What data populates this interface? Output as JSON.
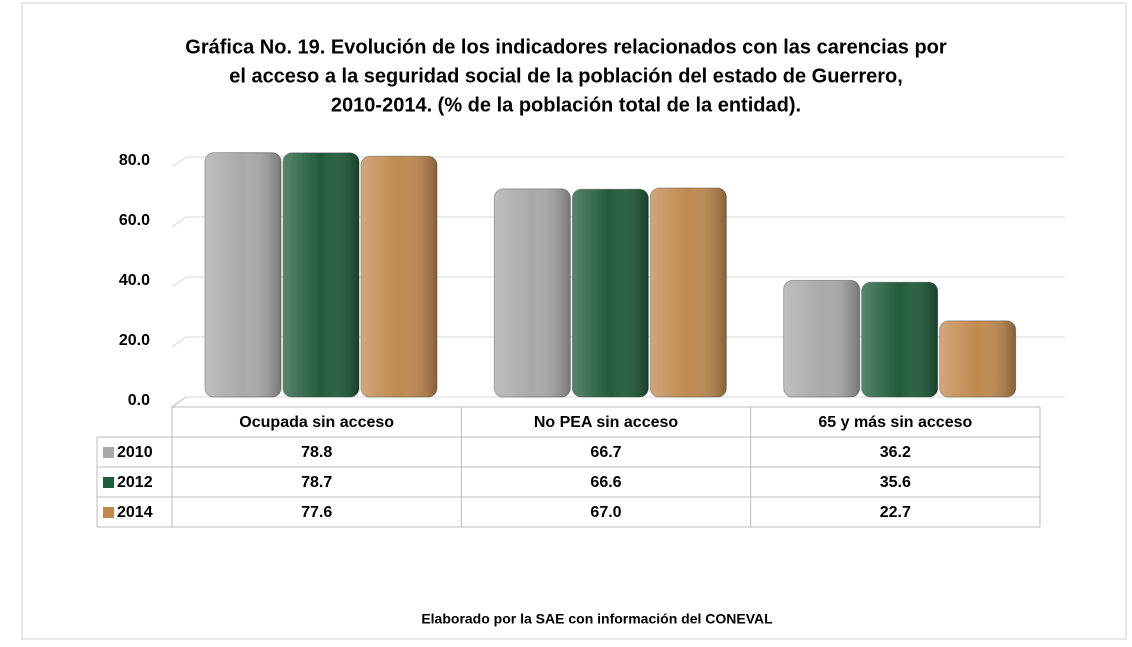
{
  "chart_data": {
    "type": "bar",
    "title": [
      "Gráfica No. 19. Evolución de los indicadores relacionados con las carencias por",
      "el acceso a la seguridad social de la población del estado de Guerrero,",
      "2010-2014. (% de la población total de la entidad)."
    ],
    "categories": [
      "Ocupada sin acceso",
      "No PEA sin acceso",
      "65 y más sin acceso"
    ],
    "series": [
      {
        "name": "2010",
        "color": "#a9a9a9",
        "values": [
          78.8,
          66.7,
          36.2
        ],
        "value_labels": [
          "78.8",
          "66.7",
          "36.2"
        ]
      },
      {
        "name": "2012",
        "color": "#1f5c3a",
        "values": [
          78.7,
          66.6,
          35.6
        ],
        "value_labels": [
          "78.7",
          "66.6",
          "35.6"
        ]
      },
      {
        "name": "2014",
        "color": "#c0894f",
        "values": [
          77.6,
          67.0,
          22.7
        ],
        "value_labels": [
          "77.6",
          "67.0",
          "22.7"
        ]
      }
    ],
    "ylim": [
      0,
      80
    ],
    "yticks": [
      {
        "value": 0,
        "label": "0.0"
      },
      {
        "value": 20,
        "label": "20.0"
      },
      {
        "value": 40,
        "label": "40.0"
      },
      {
        "value": 60,
        "label": "60.0"
      },
      {
        "value": 80,
        "label": "80.0"
      }
    ],
    "grid": true,
    "source": "Elaborado por la SAE con información del CONEVAL"
  }
}
